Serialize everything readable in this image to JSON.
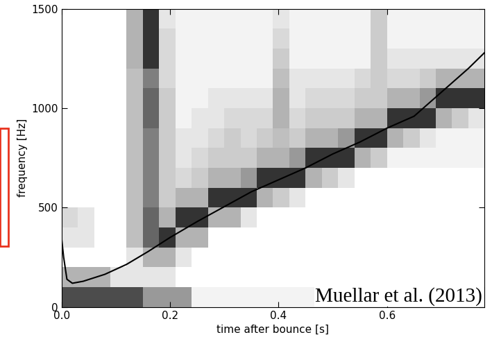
{
  "chart_data": {
    "type": "heatmap",
    "xlabel": "time after bounce [s]",
    "ylabel": "frequency [Hz]",
    "annotations": [
      "Muellar et al. (2013)"
    ],
    "xlim": [
      0,
      0.78
    ],
    "ylim": [
      0,
      1500
    ],
    "xticks": [
      {
        "value": 0,
        "label": "0.0"
      },
      {
        "value": 0.2,
        "label": "0.2"
      },
      {
        "value": 0.4,
        "label": "0.4"
      },
      {
        "value": 0.6,
        "label": "0.6"
      }
    ],
    "yticks": [
      0,
      500,
      1000,
      1500
    ],
    "x_edges": [
      0,
      0.03,
      0.06,
      0.09,
      0.12,
      0.15,
      0.18,
      0.21,
      0.24,
      0.27,
      0.3,
      0.33,
      0.36,
      0.39,
      0.42,
      0.45,
      0.48,
      0.51,
      0.54,
      0.57,
      0.6,
      0.63,
      0.66,
      0.69,
      0.72,
      0.75,
      0.78
    ],
    "y_edges": [
      0,
      100,
      200,
      300,
      400,
      500,
      600,
      700,
      800,
      900,
      1000,
      1100,
      1200,
      1300,
      1400,
      1500
    ],
    "cell_range": [
      0,
      1
    ],
    "cells": [
      [
        0.7,
        0.7,
        0.7,
        0.7,
        0.7,
        0.4,
        0.4,
        0.4,
        0.05,
        0.05,
        0.05,
        0.05,
        0.05,
        0.05,
        0.05,
        0.05,
        0.05,
        0.05,
        0.05,
        0.05,
        0.05,
        0.05,
        0.05,
        0.05,
        0.05,
        0.05
      ],
      [
        0.3,
        0.3,
        0.3,
        0.1,
        0.1,
        0.1,
        0.1,
        0,
        0,
        0,
        0,
        0,
        0,
        0,
        0,
        0,
        0,
        0,
        0,
        0,
        0,
        0,
        0,
        0,
        0,
        0
      ],
      [
        0,
        0,
        0,
        0,
        0.1,
        0.3,
        0.3,
        0.1,
        0,
        0,
        0,
        0,
        0,
        0,
        0,
        0,
        0,
        0,
        0,
        0,
        0,
        0,
        0,
        0,
        0,
        0
      ],
      [
        0.1,
        0.1,
        0,
        0,
        0.25,
        0.6,
        0.8,
        0.3,
        0.3,
        0,
        0,
        0,
        0,
        0,
        0,
        0,
        0,
        0,
        0,
        0,
        0,
        0,
        0,
        0,
        0,
        0
      ],
      [
        0.15,
        0.1,
        0,
        0,
        0.25,
        0.6,
        0.3,
        0.8,
        0.8,
        0.3,
        0.3,
        0.1,
        0,
        0,
        0,
        0,
        0,
        0,
        0,
        0,
        0,
        0,
        0,
        0,
        0,
        0
      ],
      [
        0,
        0,
        0,
        0,
        0.25,
        0.5,
        0.2,
        0.3,
        0.3,
        0.8,
        0.8,
        0.8,
        0.3,
        0.2,
        0.1,
        0,
        0,
        0,
        0,
        0,
        0,
        0,
        0,
        0,
        0,
        0
      ],
      [
        0,
        0,
        0,
        0,
        0.25,
        0.5,
        0.2,
        0.15,
        0.2,
        0.3,
        0.3,
        0.4,
        0.8,
        0.8,
        0.8,
        0.3,
        0.2,
        0.1,
        0,
        0,
        0,
        0,
        0,
        0,
        0,
        0
      ],
      [
        0,
        0,
        0,
        0,
        0.25,
        0.5,
        0.2,
        0.1,
        0.15,
        0.2,
        0.2,
        0.2,
        0.3,
        0.3,
        0.4,
        0.8,
        0.8,
        0.8,
        0.3,
        0.2,
        0.05,
        0.05,
        0.05,
        0.05,
        0.05,
        0.05
      ],
      [
        0,
        0,
        0,
        0,
        0.25,
        0.5,
        0.2,
        0.1,
        0.1,
        0.15,
        0.2,
        0.15,
        0.2,
        0.25,
        0.2,
        0.3,
        0.3,
        0.4,
        0.8,
        0.8,
        0.3,
        0.2,
        0.1,
        0.05,
        0.05,
        0.05
      ],
      [
        0,
        0,
        0,
        0,
        0.25,
        0.6,
        0.2,
        0.05,
        0.1,
        0.1,
        0.15,
        0.15,
        0.15,
        0.3,
        0.15,
        0.2,
        0.2,
        0.2,
        0.3,
        0.3,
        0.8,
        0.8,
        0.8,
        0.3,
        0.2,
        0.1
      ],
      [
        0,
        0,
        0,
        0,
        0.25,
        0.6,
        0.2,
        0.05,
        0.05,
        0.1,
        0.1,
        0.1,
        0.1,
        0.3,
        0.1,
        0.15,
        0.15,
        0.15,
        0.2,
        0.2,
        0.3,
        0.3,
        0.4,
        0.8,
        0.8,
        0.8
      ],
      [
        0,
        0,
        0,
        0,
        0.25,
        0.5,
        0.15,
        0.05,
        0.05,
        0.05,
        0.05,
        0.05,
        0.05,
        0.25,
        0.1,
        0.1,
        0.1,
        0.1,
        0.15,
        0.2,
        0.15,
        0.15,
        0.2,
        0.3,
        0.3,
        0.3
      ],
      [
        0,
        0,
        0,
        0,
        0.3,
        0.8,
        0.15,
        0.05,
        0.05,
        0.05,
        0.05,
        0.05,
        0.05,
        0.2,
        0.05,
        0.05,
        0.05,
        0.05,
        0.05,
        0.2,
        0.1,
        0.1,
        0.1,
        0.1,
        0.1,
        0.1
      ],
      [
        0,
        0,
        0,
        0,
        0.3,
        0.8,
        0.15,
        0.05,
        0.05,
        0.05,
        0.05,
        0.05,
        0.05,
        0.15,
        0.05,
        0.05,
        0.05,
        0.05,
        0.05,
        0.2,
        0.05,
        0.05,
        0.05,
        0.05,
        0.05,
        0.05
      ],
      [
        0,
        0,
        0,
        0,
        0.3,
        0.8,
        0.1,
        0.05,
        0.05,
        0.05,
        0.05,
        0.05,
        0.05,
        0.1,
        0.05,
        0.05,
        0.05,
        0.05,
        0.05,
        0.2,
        0.05,
        0.05,
        0.05,
        0.05,
        0.05,
        0.05
      ]
    ],
    "series": [
      {
        "type": "line",
        "color": "#000000",
        "x": [
          0,
          0.004,
          0.01,
          0.02,
          0.04,
          0.08,
          0.12,
          0.16,
          0.2,
          0.25,
          0.3,
          0.35,
          0.4,
          0.45,
          0.5,
          0.55,
          0.6,
          0.65,
          0.7,
          0.75,
          0.78
        ],
        "values": [
          350,
          250,
          140,
          120,
          130,
          165,
          215,
          280,
          350,
          430,
          505,
          580,
          640,
          700,
          770,
          830,
          900,
          960,
          1080,
          1200,
          1280
        ]
      }
    ]
  }
}
